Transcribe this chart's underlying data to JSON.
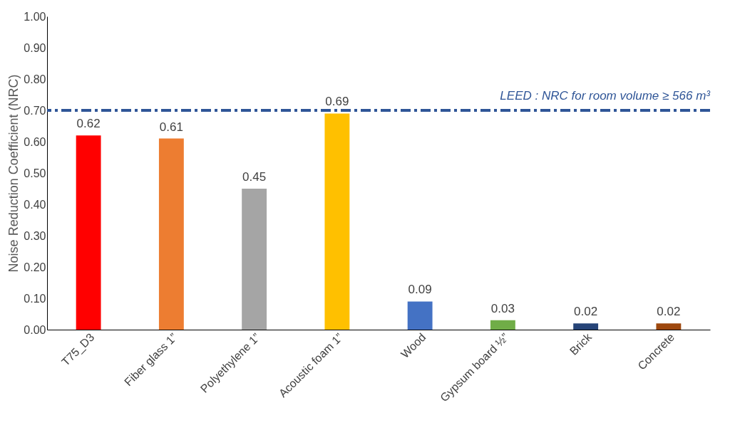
{
  "chart_data": {
    "type": "bar",
    "ylabel": "Noise Reduction Coefficient (NRC)",
    "categories": [
      "T75_D3",
      "Fiber glass 1”",
      "Polyethylene 1”",
      "Acoustic foam 1”",
      "Wood",
      "Gypsum board ½”",
      "Brick",
      "Concrete"
    ],
    "values": [
      0.62,
      0.61,
      0.45,
      0.69,
      0.09,
      0.03,
      0.02,
      0.02
    ],
    "colors": [
      "#ff0000",
      "#ed7d31",
      "#a5a5a5",
      "#ffc000",
      "#4472c4",
      "#70ad47",
      "#264478",
      "#9e480e"
    ],
    "ylim": [
      0,
      1
    ],
    "yticks": [
      {
        "value": 0,
        "label": "0.00"
      },
      {
        "value": 0.1,
        "label": "0.10"
      },
      {
        "value": 0.2,
        "label": "0.20"
      },
      {
        "value": 0.3,
        "label": "0.30"
      },
      {
        "value": 0.4,
        "label": "0.40"
      },
      {
        "value": 0.5,
        "label": "0.50"
      },
      {
        "value": 0.6,
        "label": "0.60"
      },
      {
        "value": 0.7,
        "label": "0.70"
      },
      {
        "value": 0.8,
        "label": "0.80"
      },
      {
        "value": 0.9,
        "label": "0.90"
      },
      {
        "value": 1,
        "label": "1.00"
      }
    ],
    "data_labels": true,
    "grid": false,
    "legend": false,
    "ref_lines": [
      {
        "axis": "y",
        "value": 0.7,
        "label": "LEED : NRC for room volume ≥ 566 m³",
        "color": "#2f5597",
        "line_style": "dashed"
      }
    ]
  }
}
